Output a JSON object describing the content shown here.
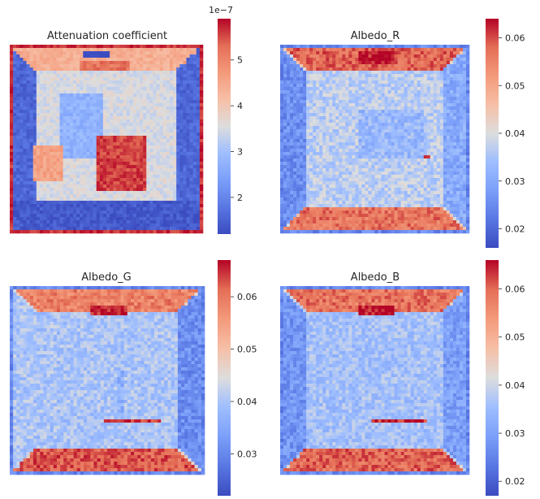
{
  "colormap": "coolwarm",
  "colors": {
    "low": "#3b4cc0",
    "mid": "#dddddd",
    "high": "#b40426",
    "text": "#262626"
  },
  "chart_data": [
    {
      "type": "heatmap",
      "title": "Attenuation coefficient",
      "colorbar": {
        "range": [
          1.2,
          5.9
        ],
        "ticks": [
          "2",
          "3",
          "4",
          "5"
        ],
        "tick_values": [
          2,
          3,
          4,
          5
        ],
        "offset_text": "1e−7"
      },
      "scene": {
        "background": 0.72,
        "bg_var": 0.05,
        "border": 0.95,
        "ceiling": 0.68,
        "floor": 0.68,
        "left_wall": 0.08,
        "right_wall": 0.08,
        "back_wall": 0.14,
        "boxes": [
          {
            "x0": 0.37,
            "x1": 0.62,
            "y0": 0.08,
            "y1": 0.14,
            "v": 0.85
          },
          {
            "x0": 0.38,
            "x1": 0.52,
            "y0": 0.03,
            "y1": 0.07,
            "v": 0.0
          },
          {
            "x0": 0.26,
            "x1": 0.48,
            "y0": 0.26,
            "y1": 0.6,
            "v": 0.33
          },
          {
            "x0": 0.45,
            "x1": 0.7,
            "y0": 0.49,
            "y1": 0.78,
            "v": 0.93
          },
          {
            "x0": 0.12,
            "x1": 0.28,
            "y0": 0.53,
            "y1": 0.72,
            "v": 0.72
          },
          {
            "x0": 0.0,
            "x1": 1.0,
            "y0": 0.82,
            "y1": 1.0,
            "v": 0.04
          }
        ]
      }
    },
    {
      "type": "heatmap",
      "title": "Albedo_R",
      "colorbar": {
        "range": [
          0.016,
          0.064
        ],
        "ticks": [
          "0.02",
          "0.03",
          "0.04",
          "0.05",
          "0.06"
        ],
        "tick_values": [
          0.02,
          0.03,
          0.04,
          0.05,
          0.06
        ]
      },
      "scene": {
        "background": 0.55,
        "bg_var": 0.08,
        "border": 0.18,
        "ceiling": 0.88,
        "floor": 0.85,
        "left_wall": 0.2,
        "right_wall": 0.3,
        "back_wall": 0.26,
        "boxes": [
          {
            "x0": 0.42,
            "x1": 0.6,
            "y0": 0.04,
            "y1": 0.1,
            "v": 0.98
          },
          {
            "x0": 0.5,
            "x1": 0.8,
            "y0": 0.58,
            "y1": 0.6,
            "v": 0.95
          },
          {
            "x0": 0.42,
            "x1": 0.75,
            "y0": 0.35,
            "y1": 0.6,
            "v": 0.35
          }
        ]
      }
    },
    {
      "type": "heatmap",
      "title": "Albedo_G",
      "colorbar": {
        "range": [
          0.022,
          0.067
        ],
        "ticks": [
          "0.03",
          "0.04",
          "0.05",
          "0.06"
        ],
        "tick_values": [
          0.03,
          0.04,
          0.05,
          0.06
        ]
      },
      "scene": {
        "background": 0.5,
        "bg_var": 0.08,
        "border": 0.18,
        "ceiling": 0.82,
        "floor": 0.9,
        "left_wall": 0.4,
        "right_wall": 0.2,
        "back_wall": 0.24,
        "boxes": [
          {
            "x0": 0.42,
            "x1": 0.6,
            "y0": 0.1,
            "y1": 0.16,
            "v": 0.98
          },
          {
            "x0": 0.48,
            "x1": 0.78,
            "y0": 0.7,
            "y1": 0.73,
            "v": 0.96
          },
          {
            "x0": 0.55,
            "x1": 0.58,
            "y0": 0.45,
            "y1": 0.7,
            "v": 0.32
          }
        ]
      }
    },
    {
      "type": "heatmap",
      "title": "Albedo_B",
      "colorbar": {
        "range": [
          0.017,
          0.066
        ],
        "ticks": [
          "0.02",
          "0.03",
          "0.04",
          "0.05",
          "0.06"
        ],
        "tick_values": [
          0.02,
          0.03,
          0.04,
          0.05,
          0.06
        ]
      },
      "scene": {
        "background": 0.48,
        "bg_var": 0.08,
        "border": 0.18,
        "ceiling": 0.85,
        "floor": 0.88,
        "left_wall": 0.22,
        "right_wall": 0.26,
        "back_wall": 0.24,
        "boxes": [
          {
            "x0": 0.42,
            "x1": 0.6,
            "y0": 0.1,
            "y1": 0.16,
            "v": 0.98
          },
          {
            "x0": 0.48,
            "x1": 0.78,
            "y0": 0.7,
            "y1": 0.73,
            "v": 0.96
          },
          {
            "x0": 0.25,
            "x1": 0.3,
            "y0": 0.2,
            "y1": 0.7,
            "v": 0.38
          }
        ]
      }
    }
  ]
}
